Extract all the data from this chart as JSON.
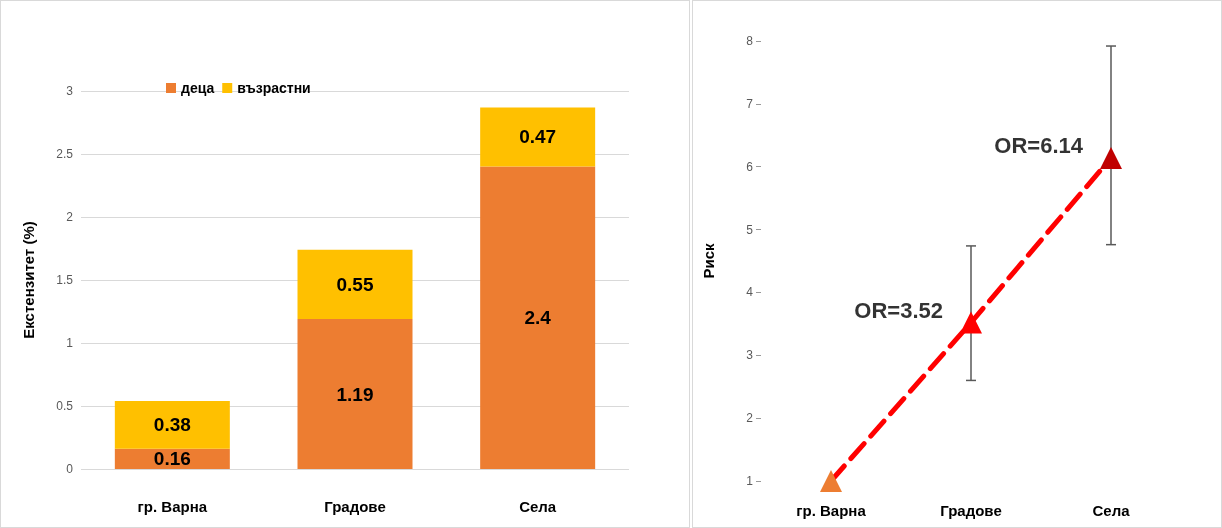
{
  "chart_data": [
    {
      "type": "bar",
      "stacked": true,
      "ylabel": "Екстензитет (%)",
      "categories": [
        "гр. Варна",
        "Градове",
        "Села"
      ],
      "series": [
        {
          "name": "деца",
          "color": "#ed7d31",
          "values": [
            0.16,
            1.19,
            2.4
          ]
        },
        {
          "name": "възрастни",
          "color": "#ffc000",
          "values": [
            0.38,
            0.55,
            0.47
          ]
        }
      ],
      "ylim": [
        0,
        3
      ],
      "yticks": [
        0,
        0.5,
        1,
        1.5,
        2,
        2.5,
        3
      ],
      "grid": "y",
      "legend": "top left",
      "data_labels": true
    },
    {
      "type": "line",
      "ylabel": "Риск",
      "categories": [
        "гр. Варна",
        "Градове",
        "Села"
      ],
      "series": [
        {
          "color": "#ff0000",
          "colors": [
            "#ed7d31",
            "#ff0000",
            "#c00000"
          ],
          "values": [
            1,
            3.52,
            6.14
          ],
          "errors": [
            null,
            [
              2.6,
              4.74
            ],
            [
              4.76,
              7.92
            ]
          ]
        }
      ],
      "ylim": [
        1,
        8
      ],
      "yticks": [
        1,
        2,
        3,
        4,
        5,
        6,
        7,
        8
      ],
      "marker": "triangle",
      "line_style": "dashed",
      "annotations": [
        {
          "text": "OR=3.52",
          "x": "Градове",
          "y": 3.52
        },
        {
          "text": "OR=6.14",
          "x": "Села",
          "y": 6.14
        }
      ]
    }
  ]
}
